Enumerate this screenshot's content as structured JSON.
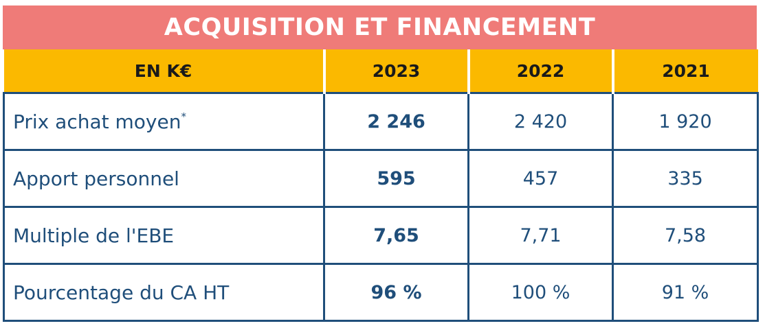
{
  "chart_data": {
    "type": "table",
    "title": "ACQUISITION ET FINANCEMENT",
    "header": [
      "EN K€",
      "2023",
      "2022",
      "2021"
    ],
    "rows": [
      {
        "label": "Prix achat moyen",
        "label_sup": "*",
        "values": [
          "2 246",
          "2 420",
          "1 920"
        ]
      },
      {
        "label": "Apport personnel",
        "label_sup": "",
        "values": [
          "595",
          "457",
          "335"
        ]
      },
      {
        "label": "Multiple de l'EBE",
        "label_sup": "",
        "values": [
          "7,65",
          "7,71",
          "7,58"
        ]
      },
      {
        "label": "Pourcentage du CA HT",
        "label_sup": "",
        "values": [
          "96 %",
          "100 %",
          "91 %"
        ]
      }
    ]
  },
  "colors": {
    "title_background": "#ef7b78",
    "header_background": "#fbb900",
    "border": "#1f4e7a",
    "text": "#1f4e7a"
  }
}
